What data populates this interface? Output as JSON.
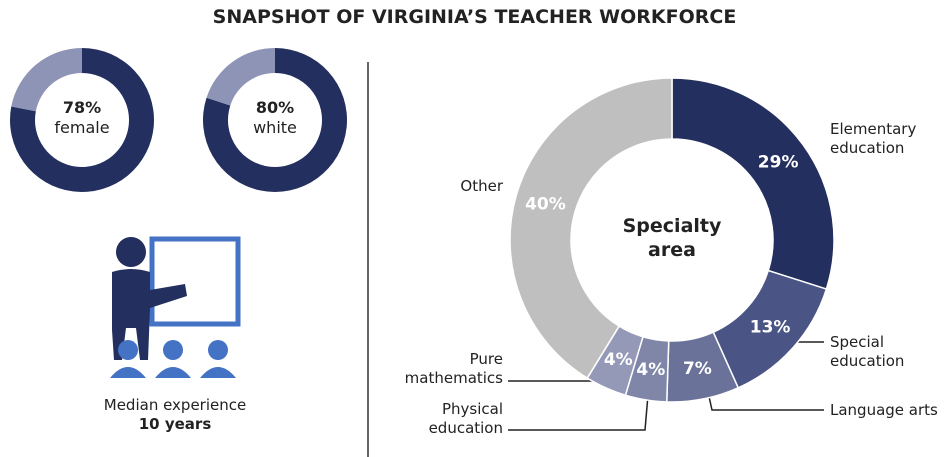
{
  "title": "SNAPSHOT OF VIRGINIA’S TEACHER WORKFORCE",
  "experience": {
    "label": "Median experience",
    "value_label": "10 years"
  },
  "chart_data": [
    {
      "type": "donut",
      "categories": [
        "female",
        null
      ],
      "values": [
        78,
        22
      ],
      "value_labels": [
        "78%",
        null
      ],
      "colors": [
        "#232f5e",
        "#8e94b5"
      ]
    },
    {
      "type": "donut",
      "categories": [
        "white",
        null
      ],
      "values": [
        80,
        20
      ],
      "value_labels": [
        "80%",
        null
      ],
      "colors": [
        "#232f5e",
        "#8e94b5"
      ]
    },
    {
      "type": "donut",
      "center_label": "Specialty area",
      "categories": [
        "Elementary education",
        "Special education",
        "Language arts",
        "Physical education",
        "Pure mathematics",
        "Other"
      ],
      "values": [
        29,
        13,
        7,
        4,
        4,
        40
      ],
      "value_labels": [
        "29%",
        "13%",
        "7%",
        "4%",
        "4%",
        "40%"
      ],
      "colors": [
        "#232f5e",
        "#4a5585",
        "#6b7299",
        "#7f86a8",
        "#9499b8",
        "#bfbfbf"
      ]
    }
  ]
}
